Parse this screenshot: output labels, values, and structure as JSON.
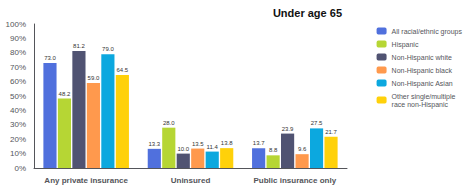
{
  "chart_data": {
    "type": "bar",
    "title": "Under age 65",
    "categories": [
      "Any private insurance",
      "Uninsured",
      "Public insurance only"
    ],
    "series": [
      {
        "name": "All racial/ethnic groups",
        "values": [
          73.0,
          13.3,
          13.7
        ],
        "value_labels": [
          "73.0",
          "13.3",
          "13.7"
        ]
      },
      {
        "name": "Hispanic",
        "values": [
          48.2,
          28.0,
          8.8
        ],
        "value_labels": [
          "48.2",
          "28.0",
          "8.8"
        ]
      },
      {
        "name": "Non-Hispanic white",
        "values": [
          81.2,
          10.0,
          23.9
        ],
        "value_labels": [
          "81.2",
          "10.0",
          "23.9"
        ]
      },
      {
        "name": "Non-Hispanic black",
        "values": [
          59.0,
          13.5,
          9.6
        ],
        "value_labels": [
          "59.0",
          "13.5",
          "9.6"
        ]
      },
      {
        "name": "Non-Hispanic Asian",
        "values": [
          79.0,
          11.4,
          27.5
        ],
        "value_labels": [
          "79.0",
          "11.4",
          "27.5"
        ]
      },
      {
        "name": "Other single/multiple\nrace non-Hispanic",
        "values": [
          64.5,
          13.8,
          21.7
        ],
        "value_labels": [
          "64.5",
          "13.8",
          "21.7"
        ]
      }
    ],
    "ylim": [
      0,
      100
    ],
    "yticks": [
      {
        "value": 0,
        "label": "0%"
      },
      {
        "value": 10,
        "label": "10%"
      },
      {
        "value": 20,
        "label": "20%"
      },
      {
        "value": 30,
        "label": "30%"
      },
      {
        "value": 40,
        "label": "40%"
      },
      {
        "value": 50,
        "label": "50%"
      },
      {
        "value": 60,
        "label": "60%"
      },
      {
        "value": 70,
        "label": "70%"
      },
      {
        "value": 80,
        "label": "80%"
      },
      {
        "value": 90,
        "label": "90%"
      },
      {
        "value": 100,
        "label": "100%"
      }
    ],
    "grid": false,
    "legend": "right",
    "data_labels": true
  }
}
